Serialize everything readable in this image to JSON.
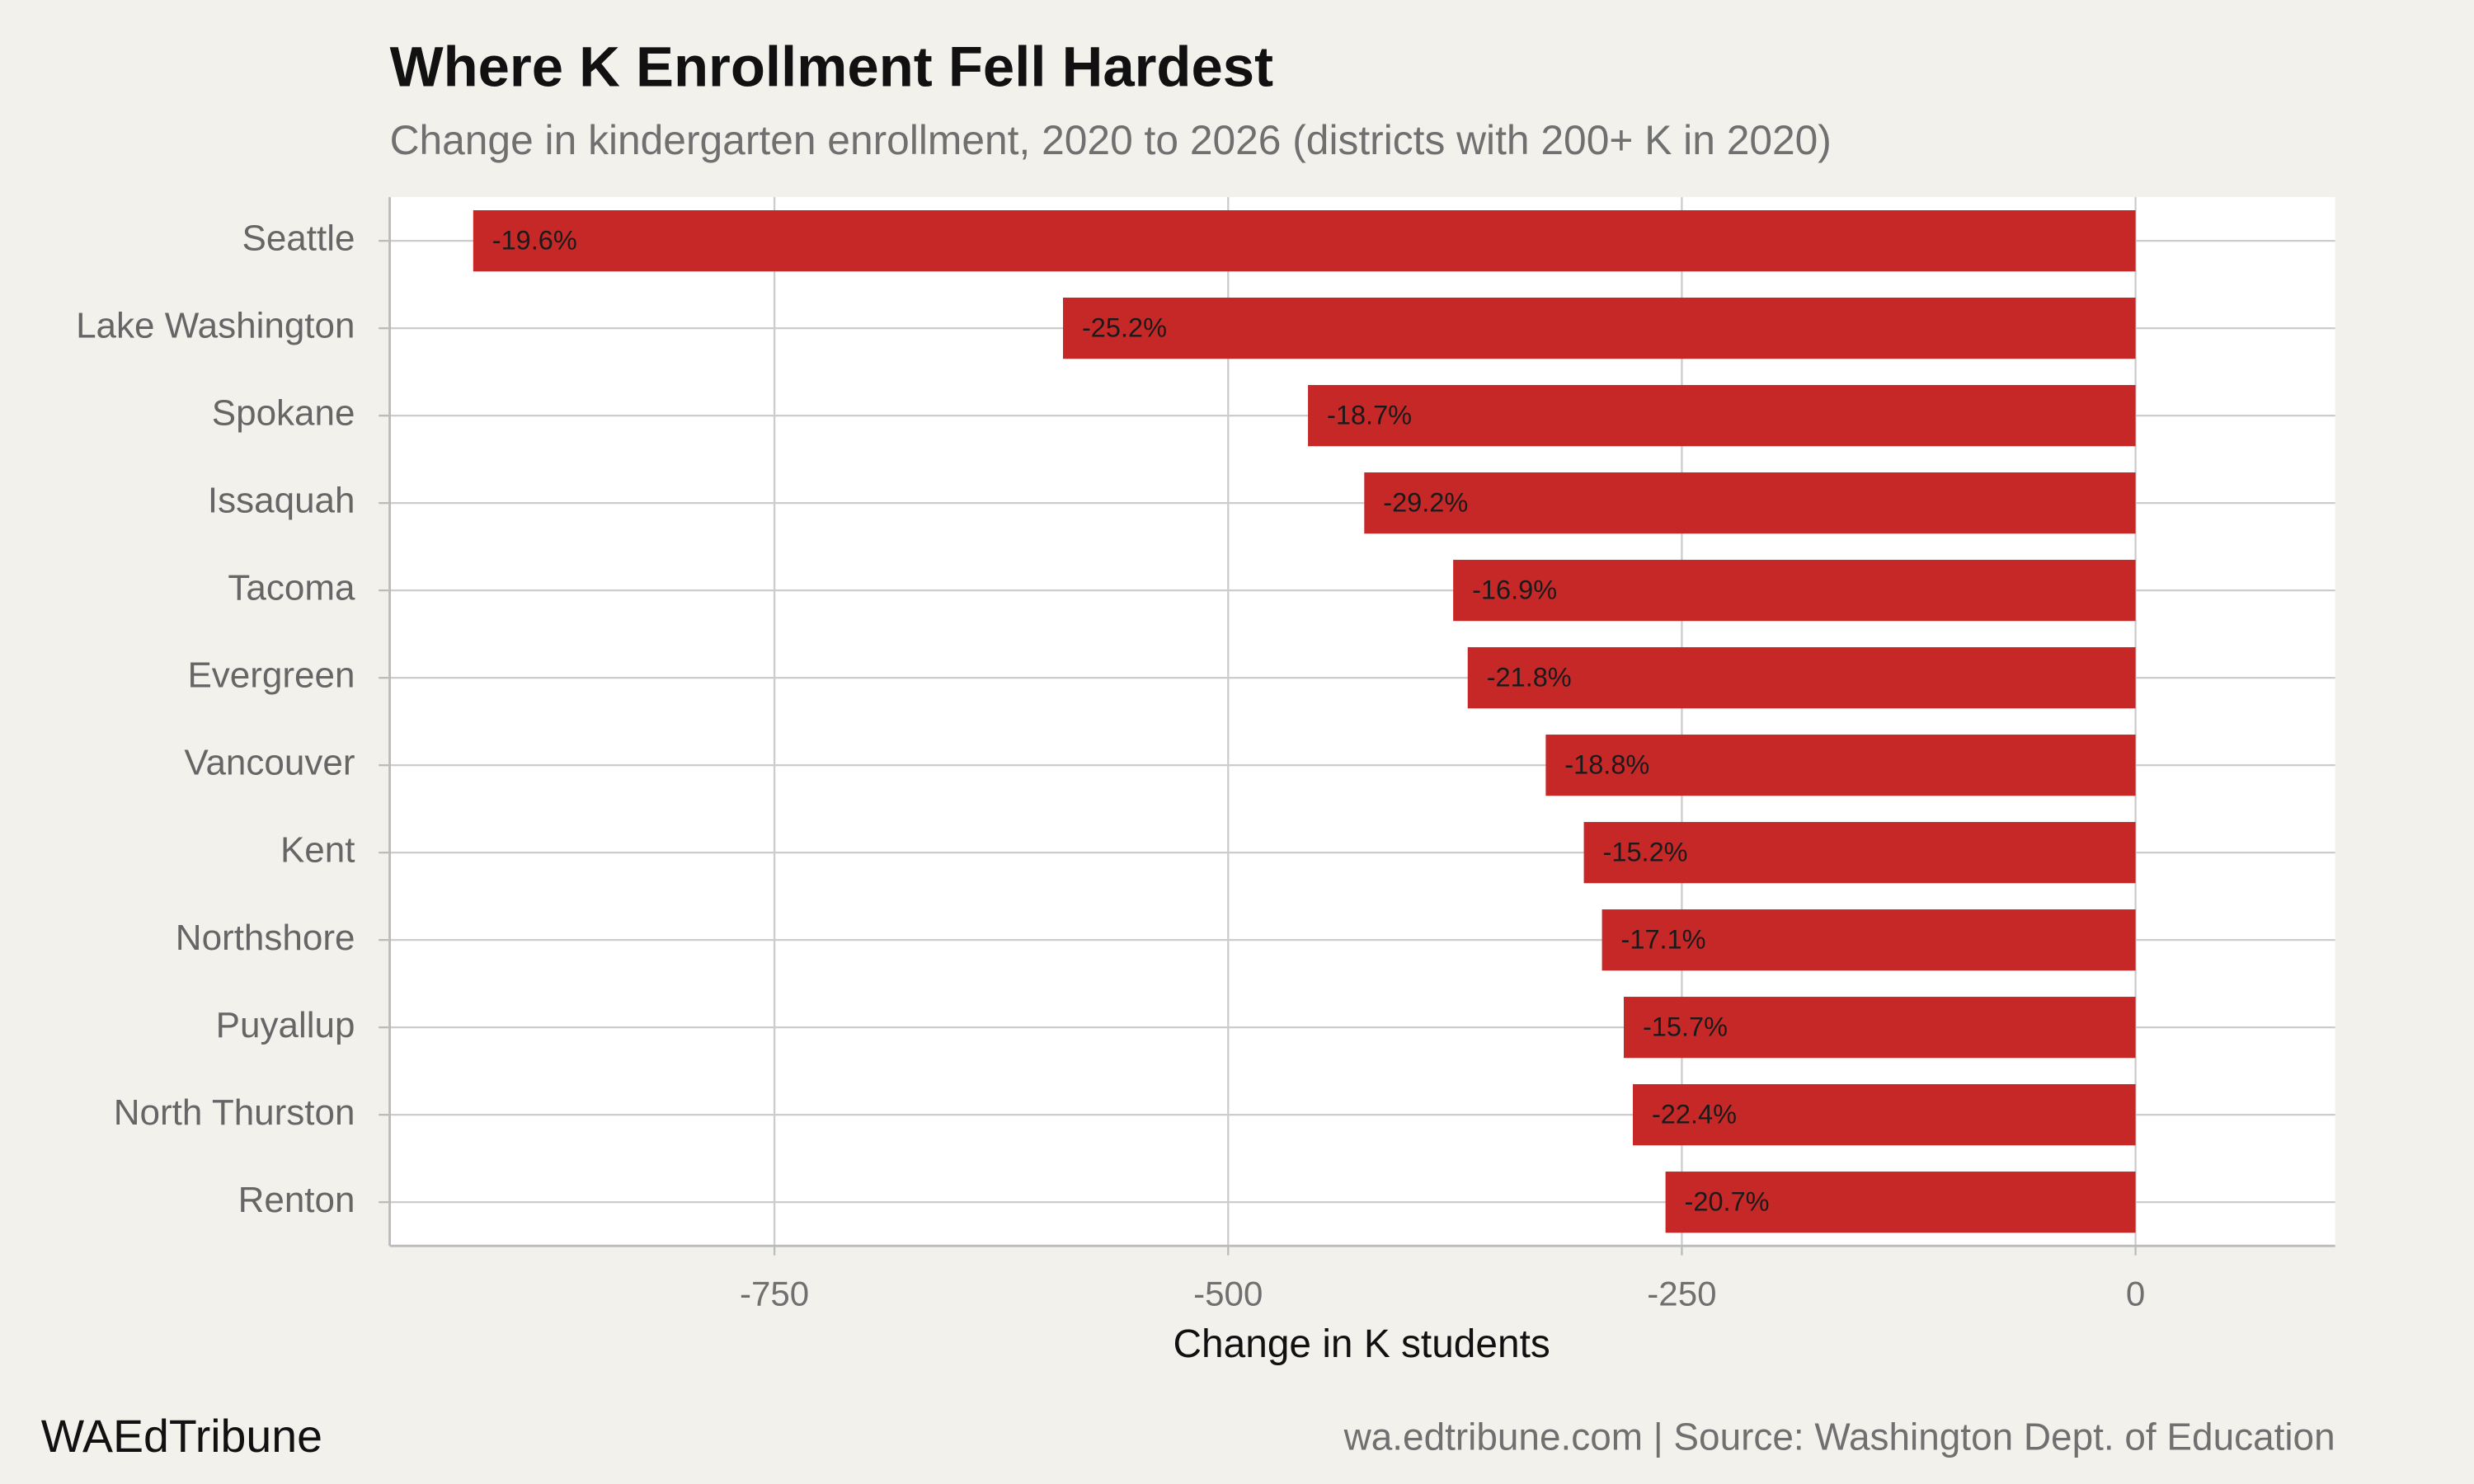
{
  "chart_data": {
    "type": "bar",
    "orientation": "horizontal",
    "title": "Where K Enrollment Fell Hardest",
    "subtitle": "Change in kindergarten enrollment, 2020 to 2026 (districts with 200+ K in 2020)",
    "x_label": "Change in K students",
    "categories": [
      "Seattle",
      "Lake Washington",
      "Spokane",
      "Issaquah",
      "Tacoma",
      "Evergreen",
      "Vancouver",
      "Kent",
      "Northshore",
      "Puyallup",
      "North Thurston",
      "Renton"
    ],
    "values": [
      -916,
      -591,
      -456,
      -425,
      -376,
      -368,
      -325,
      -304,
      -294,
      -282,
      -277,
      -259
    ],
    "pct_labels": [
      "-19.6%",
      "-25.2%",
      "-18.7%",
      "-29.2%",
      "-16.9%",
      "-21.8%",
      "-18.8%",
      "-15.2%",
      "-17.1%",
      "-15.7%",
      "-22.4%",
      "-20.7%"
    ],
    "color": "#c62828",
    "xlim": [
      -962,
      110
    ],
    "xticks": [
      -750,
      -500,
      -250,
      0
    ],
    "grid": true,
    "brand": "WAEdTribune",
    "source": "wa.edtribune.com | Source: Washington Dept. of Education"
  }
}
